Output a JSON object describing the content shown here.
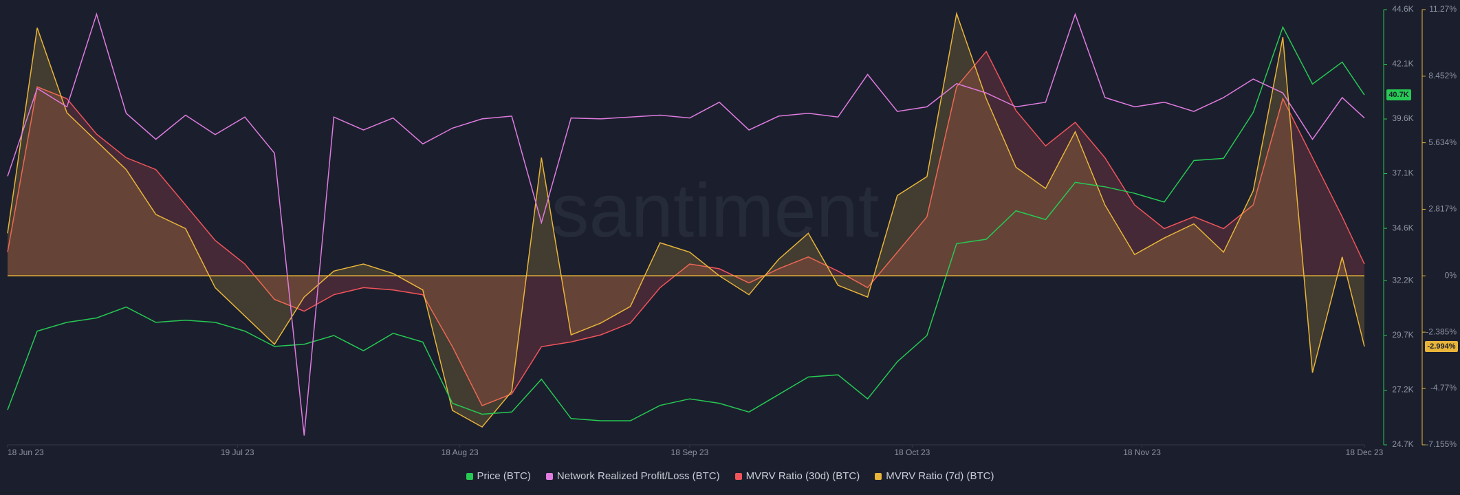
{
  "chart_data": {
    "type": "line",
    "x": [
      "2023-06-18",
      "2023-06-22",
      "2023-06-26",
      "2023-06-30",
      "2023-07-04",
      "2023-07-08",
      "2023-07-12",
      "2023-07-16",
      "2023-07-20",
      "2023-07-24",
      "2023-07-28",
      "2023-08-01",
      "2023-08-05",
      "2023-08-09",
      "2023-08-13",
      "2023-08-17",
      "2023-08-21",
      "2023-08-25",
      "2023-08-29",
      "2023-09-02",
      "2023-09-06",
      "2023-09-10",
      "2023-09-14",
      "2023-09-18",
      "2023-09-22",
      "2023-09-26",
      "2023-09-30",
      "2023-10-04",
      "2023-10-08",
      "2023-10-12",
      "2023-10-16",
      "2023-10-20",
      "2023-10-24",
      "2023-10-28",
      "2023-11-01",
      "2023-11-05",
      "2023-11-09",
      "2023-11-13",
      "2023-11-17",
      "2023-11-21",
      "2023-11-25",
      "2023-11-29",
      "2023-12-03",
      "2023-12-07",
      "2023-12-11",
      "2023-12-15",
      "2023-12-18"
    ],
    "xlim": [
      "2023-06-18",
      "2023-12-18"
    ],
    "xticks": [
      {
        "value": "2023-06-18",
        "label": "18 Jun 23"
      },
      {
        "value": "2023-07-19",
        "label": "19 Jul 23"
      },
      {
        "value": "2023-08-18",
        "label": "18 Aug 23"
      },
      {
        "value": "2023-09-18",
        "label": "18 Sep 23"
      },
      {
        "value": "2023-10-18",
        "label": "18 Oct 23"
      },
      {
        "value": "2023-11-18",
        "label": "18 Nov 23"
      },
      {
        "value": "2023-12-18",
        "label": "18 Dec 23"
      }
    ],
    "ylim": [
      24700,
      44600
    ],
    "yticks": [
      {
        "value": 24700,
        "label": "24.7K"
      },
      {
        "value": 27200,
        "label": "27.2K"
      },
      {
        "value": 29700,
        "label": "29.7K"
      },
      {
        "value": 32200,
        "label": "32.2K"
      },
      {
        "value": 34600,
        "label": "34.6K"
      },
      {
        "value": 37100,
        "label": "37.1K"
      },
      {
        "value": 39600,
        "label": "39.6K"
      },
      {
        "value": 42100,
        "label": "42.1K"
      },
      {
        "value": 44600,
        "label": "44.6K"
      }
    ],
    "y2lim": [
      -7.155,
      11.27
    ],
    "y2ticks": [
      {
        "value": -7.155,
        "label": "-7.155%"
      },
      {
        "value": -4.77,
        "label": "-4.77%"
      },
      {
        "value": -2.385,
        "label": "-2.385%"
      },
      {
        "value": 0,
        "label": "0%"
      },
      {
        "value": 2.817,
        "label": "2.817%"
      },
      {
        "value": 5.634,
        "label": "5.634%"
      },
      {
        "value": 8.452,
        "label": "8.452%"
      },
      {
        "value": 11.27,
        "label": "11.27%"
      }
    ],
    "y3lim": [
      -350000,
      120000
    ],
    "watermark": "santiment",
    "series": [
      {
        "name": "MVRV Ratio (30d) (BTC)",
        "color": "#f2545b",
        "axis": "y2",
        "fill": true,
        "values": [
          1.0,
          8.0,
          7.5,
          6.0,
          5.0,
          4.5,
          3.0,
          1.5,
          0.5,
          -1.0,
          -1.5,
          -0.8,
          -0.5,
          -0.6,
          -0.8,
          -3.0,
          -5.5,
          -5.0,
          -3.0,
          -2.8,
          -2.5,
          -2.0,
          -0.5,
          0.5,
          0.3,
          -0.3,
          0.3,
          0.8,
          0.2,
          -0.5,
          1.0,
          2.5,
          8.0,
          9.5,
          7.0,
          5.5,
          6.5,
          5.0,
          3.0,
          2.0,
          2.5,
          2.0,
          3.0,
          7.5,
          5.0,
          2.5,
          0.5
        ]
      },
      {
        "name": "MVRV Ratio (7d) (BTC)",
        "color": "#e8b53a",
        "axis": "y2",
        "fill": true,
        "last_label": "-2.994%",
        "values": [
          1.8,
          10.5,
          6.9,
          5.7,
          4.5,
          2.6,
          2.0,
          -0.5,
          -1.7,
          -2.9,
          -0.9,
          0.2,
          0.5,
          0.1,
          -0.6,
          -5.7,
          -6.4,
          -4.9,
          5.0,
          -2.5,
          -2.0,
          -1.3,
          1.4,
          1.0,
          0.0,
          -0.8,
          0.7,
          1.8,
          -0.4,
          -0.9,
          3.4,
          4.2,
          11.1,
          7.5,
          4.6,
          3.7,
          6.1,
          3.0,
          0.9,
          1.6,
          2.2,
          1.0,
          3.6,
          10.1,
          -4.1,
          0.8,
          -2.994
        ]
      },
      {
        "name": "Price (BTC)",
        "color": "#26c953",
        "axis": "y",
        "last_label": "40.7K",
        "values": [
          26300,
          29900,
          30300,
          30500,
          31000,
          30300,
          30400,
          30300,
          29900,
          29200,
          29300,
          29700,
          29000,
          29800,
          29400,
          26600,
          26100,
          26200,
          27700,
          25900,
          25800,
          25800,
          26500,
          26800,
          26600,
          26200,
          27000,
          27800,
          27900,
          26800,
          28500,
          29700,
          33900,
          34100,
          35400,
          35000,
          36700,
          36500,
          36200,
          35800,
          37700,
          37800,
          39900,
          43800,
          41200,
          42200,
          40700
        ]
      },
      {
        "name": "Network Realized Profit/Loss (BTC)",
        "color": "#e07be0",
        "axis": "y3",
        "values": [
          -60000,
          35000,
          15000,
          115000,
          8000,
          -20000,
          6000,
          -15000,
          4000,
          -35000,
          -340000,
          4000,
          -10000,
          3000,
          -25000,
          -8000,
          2000,
          5000,
          -110000,
          3000,
          2000,
          4000,
          6000,
          3000,
          20000,
          -10000,
          5000,
          8000,
          4000,
          50000,
          10000,
          15000,
          40000,
          30000,
          15000,
          20000,
          115000,
          25000,
          15000,
          20000,
          10000,
          25000,
          45000,
          30000,
          -20000,
          25000,
          3000
        ]
      }
    ],
    "legend_order": [
      2,
      3,
      0,
      1
    ]
  }
}
